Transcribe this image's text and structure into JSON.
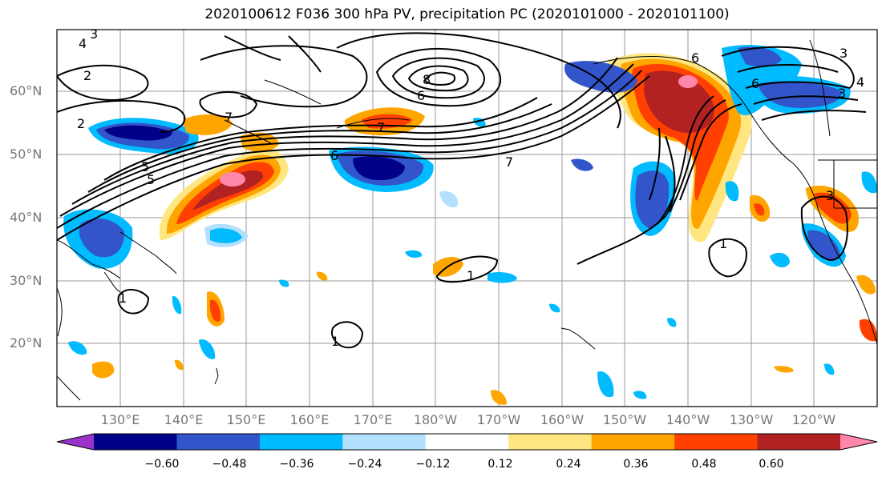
{
  "title": "2020100612 F036 300 hPa PV, precipitation PC (2020101000 - 2020101100)",
  "lat_labels": [
    "60°N",
    "50°N",
    "40°N",
    "30°N",
    "20°N"
  ],
  "lon_labels": [
    "130°E",
    "140°E",
    "150°E",
    "160°E",
    "170°E",
    "180°W",
    "170°W",
    "160°W",
    "150°W",
    "140°W",
    "130°W",
    "120°W"
  ],
  "colorbar": {
    "ticks": [
      "−0.60",
      "−0.48",
      "−0.36",
      "−0.24",
      "−0.12",
      "0.12",
      "0.24",
      "0.36",
      "0.48",
      "0.60"
    ],
    "colors": [
      "#9933cc",
      "#000088",
      "#3355cc",
      "#00bbff",
      "#b3e0ff",
      "#ffffff",
      "#ffe680",
      "#ffa500",
      "#ff4000",
      "#b22222",
      "#ff88aa"
    ]
  },
  "contour_labels": [
    "2",
    "3",
    "4",
    "5",
    "6",
    "7",
    "8",
    "1"
  ]
}
